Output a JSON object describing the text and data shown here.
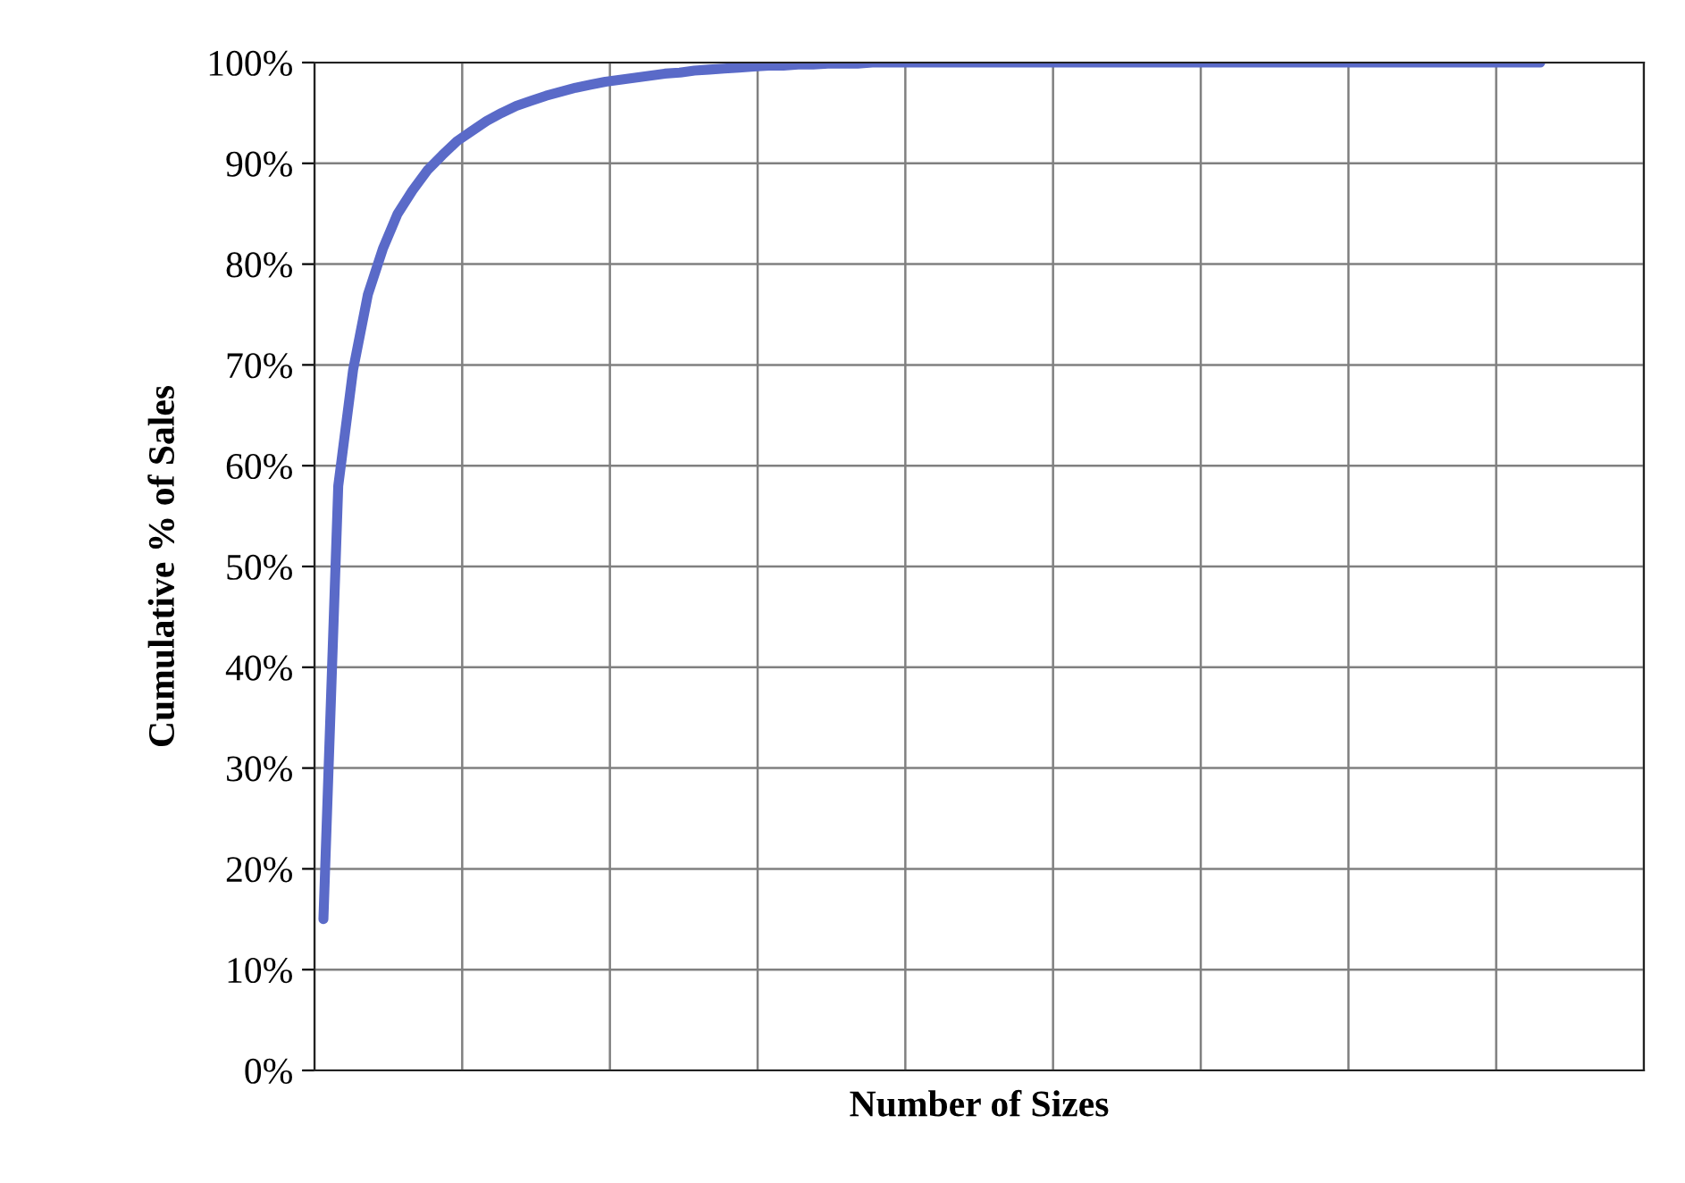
{
  "chart_data": {
    "type": "line",
    "xlabel": "Number of Sizes",
    "ylabel": "Cumulative % of Sales",
    "categories": [
      null,
      null,
      null,
      null,
      null,
      null,
      null,
      null,
      null,
      null,
      null,
      null,
      null,
      null,
      null,
      null,
      null,
      null,
      null,
      null,
      null,
      null,
      null,
      null,
      null,
      null,
      null,
      null,
      null,
      null,
      null,
      null,
      null,
      null,
      null,
      null,
      null,
      null,
      null,
      null,
      null,
      null,
      null,
      null,
      null,
      null,
      null,
      null,
      null,
      null,
      null,
      null,
      null,
      null,
      null,
      null,
      null,
      null,
      null,
      null,
      null,
      null,
      null,
      null,
      null,
      null,
      null,
      null,
      null,
      null,
      null,
      null,
      null,
      null,
      null,
      null,
      null,
      null,
      null,
      null,
      null,
      null,
      null
    ],
    "series": [
      {
        "color": "#5a6ac8",
        "values": [
          15,
          58,
          69.5,
          77,
          81.5,
          85,
          87.3,
          89.3,
          90.8,
          92.2,
          93.2,
          94.2,
          95,
          95.7,
          96.2,
          96.7,
          97.1,
          97.5,
          97.8,
          98.1,
          98.3,
          98.5,
          98.7,
          98.9,
          99,
          99.2,
          99.3,
          99.4,
          99.5,
          99.6,
          99.7,
          99.7,
          99.8,
          99.8,
          99.9,
          99.9,
          99.9,
          100,
          100,
          100,
          100,
          100,
          100,
          100,
          100,
          100,
          100,
          100,
          100,
          100,
          100,
          100,
          100,
          100,
          100,
          100,
          100,
          100,
          100,
          100,
          100,
          100,
          100,
          100,
          100,
          100,
          100,
          100,
          100,
          100,
          100,
          100,
          100,
          100,
          100,
          100,
          100,
          100,
          100,
          100,
          100,
          100,
          100
        ]
      }
    ],
    "ylim": [
      0,
      100
    ],
    "yticks": [
      {
        "value": 0,
        "label": "0%"
      },
      {
        "value": 10,
        "label": "10%"
      },
      {
        "value": 20,
        "label": "20%"
      },
      {
        "value": 30,
        "label": "30%"
      },
      {
        "value": 40,
        "label": "40%"
      },
      {
        "value": 50,
        "label": "50%"
      },
      {
        "value": 60,
        "label": "60%"
      },
      {
        "value": 70,
        "label": "70%"
      },
      {
        "value": 80,
        "label": "80%"
      },
      {
        "value": 90,
        "label": "90%"
      },
      {
        "value": 100,
        "label": "100%"
      }
    ],
    "grid": true,
    "tick_labels": "y",
    "marker": "none",
    "line_style": "solid"
  }
}
